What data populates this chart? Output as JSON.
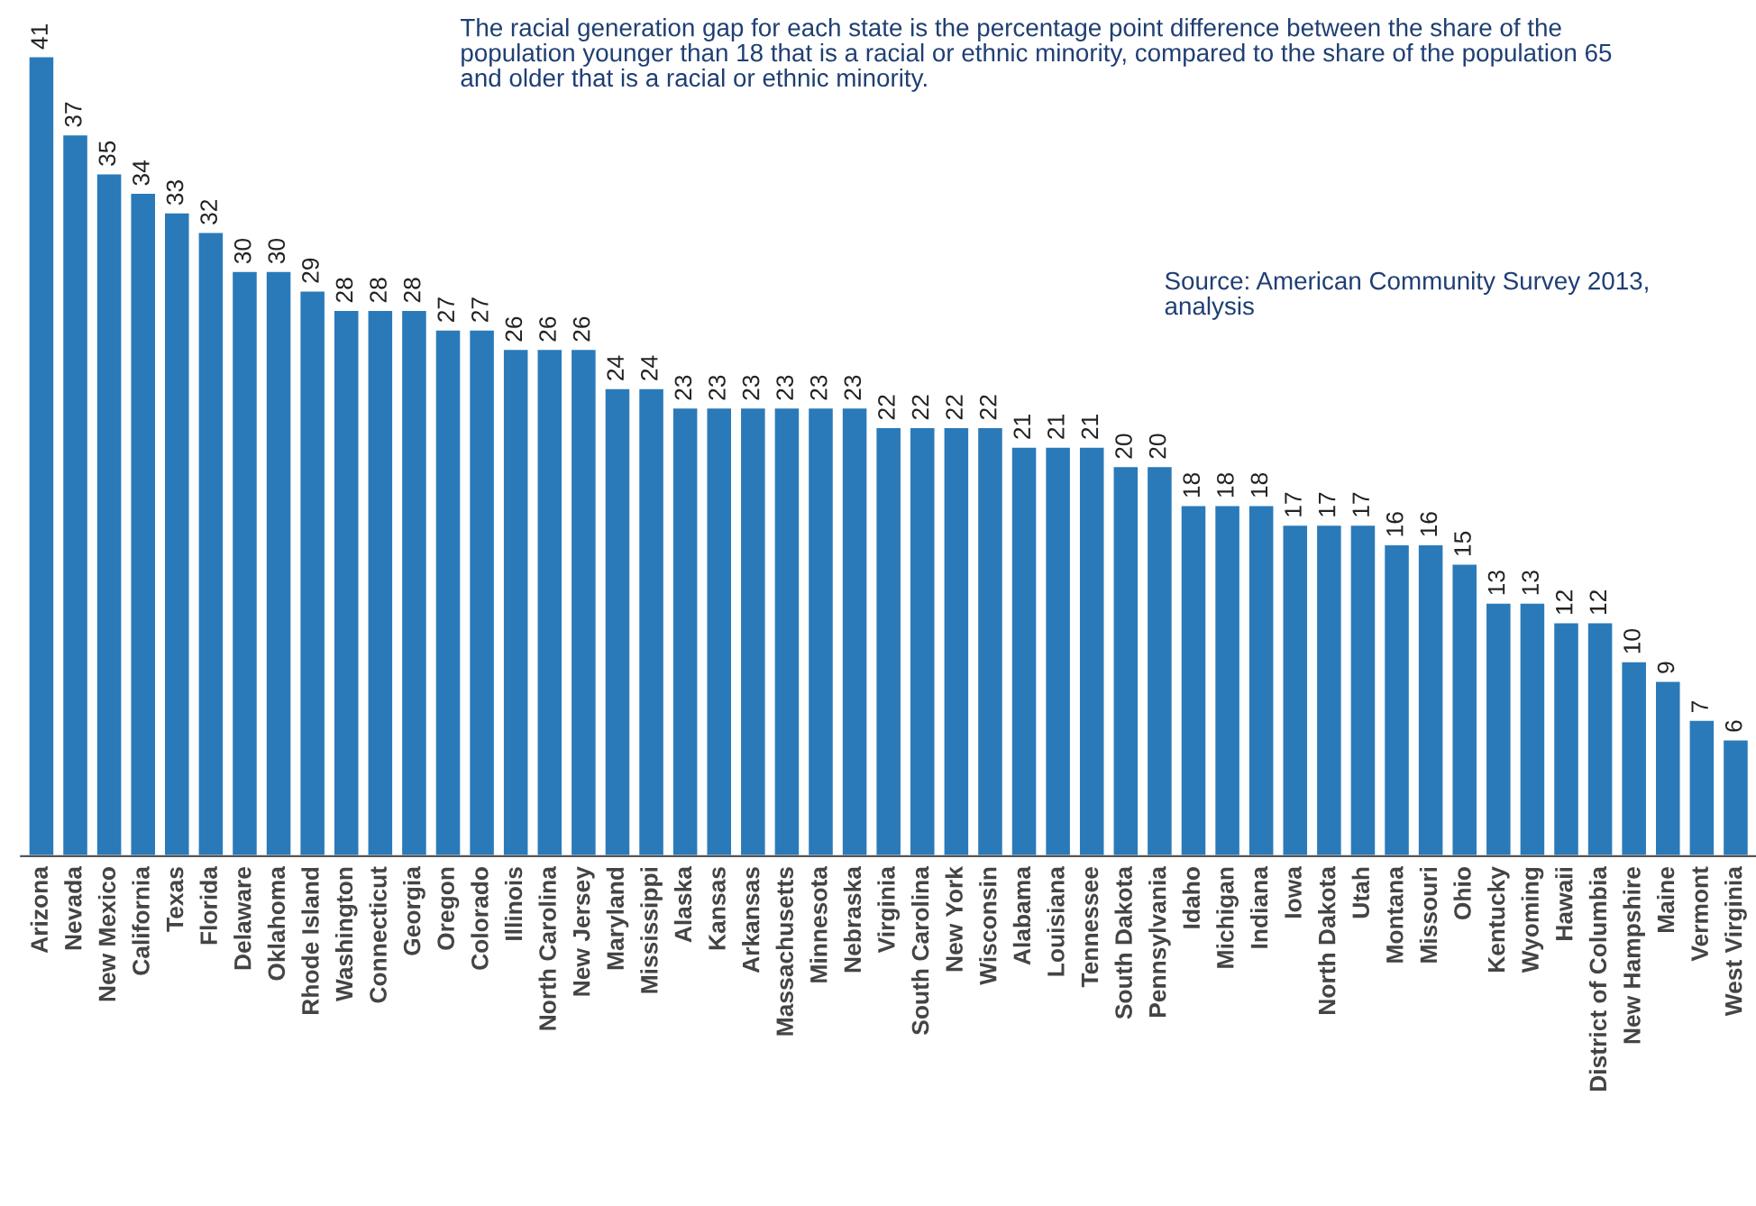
{
  "chart_data": {
    "type": "bar",
    "categories": [
      "Arizona",
      "Nevada",
      "New Mexico",
      "California",
      "Texas",
      "Florida",
      "Delaware",
      "Oklahoma",
      "Rhode Island",
      "Washington",
      "Connecticut",
      "Georgia",
      "Oregon",
      "Colorado",
      "Illinois",
      "North Carolina",
      "New Jersey",
      "Maryland",
      "Mississippi",
      "Alaska",
      "Kansas",
      "Arkansas",
      "Massachusetts",
      "Minnesota",
      "Nebraska",
      "Virginia",
      "South Carolina",
      "New York",
      "Wisconsin",
      "Alabama",
      "Louisiana",
      "Tennessee",
      "South Dakota",
      "Pennsylvania",
      "Idaho",
      "Michigan",
      "Indiana",
      "Iowa",
      "North Dakota",
      "Utah",
      "Montana",
      "Missouri",
      "Ohio",
      "Kentucky",
      "Wyoming",
      "Hawaii",
      "District of Columbia",
      "New Hampshire",
      "Maine",
      "Vermont",
      "West Virginia"
    ],
    "values": [
      41,
      37,
      35,
      34,
      33,
      32,
      30,
      30,
      29,
      28,
      28,
      28,
      27,
      27,
      26,
      26,
      26,
      24,
      24,
      23,
      23,
      23,
      23,
      23,
      23,
      22,
      22,
      22,
      22,
      21,
      21,
      21,
      20,
      20,
      18,
      18,
      18,
      17,
      17,
      17,
      16,
      16,
      15,
      13,
      13,
      12,
      12,
      10,
      9,
      7,
      6
    ],
    "color": "#2a7ab9",
    "data_labels": true,
    "grid": false,
    "legend": false,
    "tick_labels": "x",
    "annotations": [
      "The racial generation gap for each state is the percentage point difference between the share of the population younger than 18 that is a racial or ethnic minority, compared to the share of the population 65 and older that is a racial or ethnic minority.",
      "Source: American Community Survey 2013, analysis"
    ]
  }
}
